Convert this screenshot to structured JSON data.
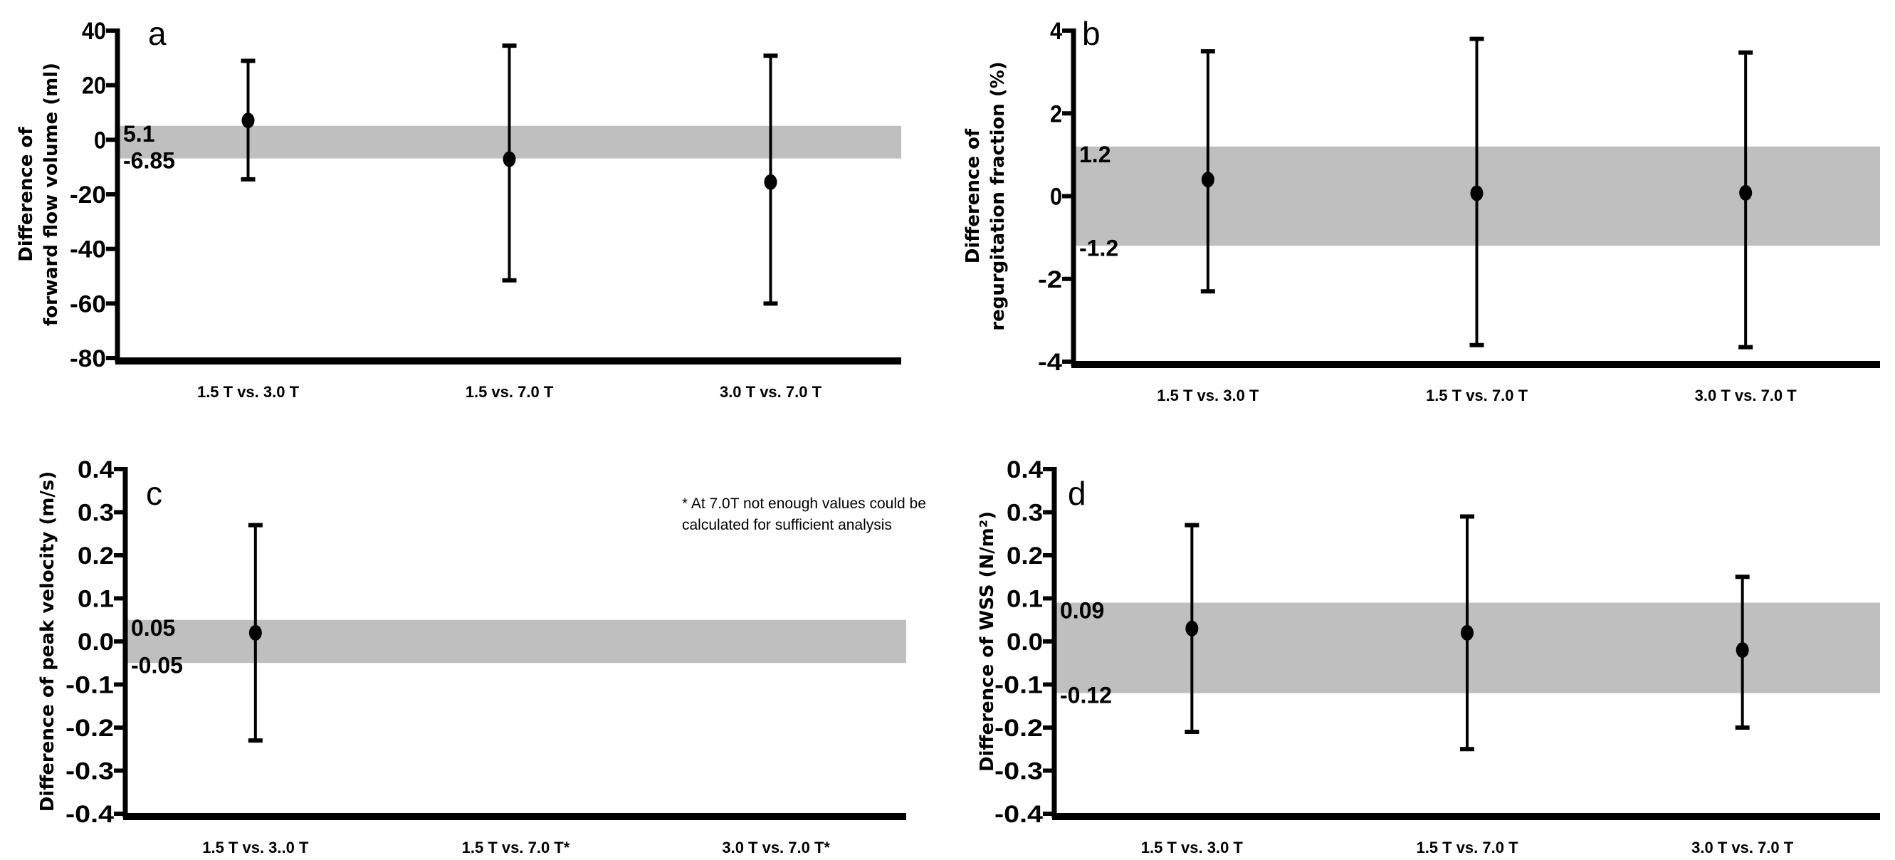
{
  "chart_data": [
    {
      "type": "scatter",
      "panel": "a",
      "ylabel_lines": [
        "Difference of",
        "forward flow volume (ml)"
      ],
      "categories": [
        "1.5 T vs. 3.0 T",
        "1.5 vs. 7.0 T",
        "3.0 T vs. 7.0 T"
      ],
      "yticks": [
        "40",
        "20",
        "0",
        "-20",
        "-40",
        "-60",
        "-80"
      ],
      "ylim": [
        -80,
        40
      ],
      "band": {
        "upper": 5.1,
        "lower": -6.85,
        "upper_label": "5.1",
        "lower_label": "-6.85",
        "color": "#bfbfbf"
      },
      "points": [
        {
          "mean": 7.1,
          "upper": 28.9,
          "lower": -14.5
        },
        {
          "mean": -7.1,
          "upper": 34.5,
          "lower": -51.5
        },
        {
          "mean": -15.5,
          "upper": 30.8,
          "lower": -60.0
        }
      ],
      "note": []
    },
    {
      "type": "scatter",
      "panel": "b",
      "ylabel_lines": [
        "Difference of",
        "regurgitation fraction (%)"
      ],
      "categories": [
        "1.5 T vs. 3.0 T",
        "1.5 T vs. 7.0 T",
        "3.0 T vs. 7.0 T"
      ],
      "yticks": [
        "4",
        "2",
        "0",
        "-2",
        "-4"
      ],
      "ylim": [
        -4,
        4
      ],
      "band": {
        "upper": 1.2,
        "lower": -1.2,
        "upper_label": "1.2",
        "lower_label": "-1.2",
        "color": "#bfbfbf"
      },
      "points": [
        {
          "mean": 0.4,
          "upper": 3.5,
          "lower": -2.3
        },
        {
          "mean": 0.07,
          "upper": 3.8,
          "lower": -3.6
        },
        {
          "mean": 0.08,
          "upper": 3.47,
          "lower": -3.65
        }
      ],
      "note": []
    },
    {
      "type": "scatter",
      "panel": "c",
      "ylabel_lines": [
        "Difference of peak velocity (m/s)"
      ],
      "categories": [
        "1.5 T vs. 3..0 T",
        "1.5 T vs. 7.0 T*",
        "3.0 T vs. 7.0 T*"
      ],
      "yticks": [
        "0.4",
        "0.3",
        "0.2",
        "0.1",
        "0.0",
        "-0.1",
        "-0.2",
        "-0.3",
        "-0.4"
      ],
      "ylim": [
        -0.4,
        0.4
      ],
      "band": {
        "upper": 0.05,
        "lower": -0.05,
        "upper_label": "0.05",
        "lower_label": "-0.05",
        "color": "#bfbfbf"
      },
      "points": [
        {
          "mean": 0.02,
          "upper": 0.27,
          "lower": -0.23
        },
        null,
        null
      ],
      "note": [
        "* At 7.0T not enough values could be",
        "calculated for sufficient analysis"
      ]
    },
    {
      "type": "scatter",
      "panel": "d",
      "ylabel_lines": [
        "Difference of WSS (N/m²)"
      ],
      "categories": [
        "1.5 T vs. 3.0 T",
        "1.5 T vs. 7.0 T",
        "3.0 T vs. 7.0 T"
      ],
      "yticks": [
        "0.4",
        "0.3",
        "0.2",
        "0.1",
        "0.0",
        "-0.1",
        "-0.2",
        "-0.3",
        "-0.4"
      ],
      "ylim": [
        -0.4,
        0.4
      ],
      "band": {
        "upper": 0.09,
        "lower": -0.12,
        "upper_label": "0.09",
        "lower_label": "-0.12",
        "color": "#bfbfbf"
      },
      "points": [
        {
          "mean": 0.03,
          "upper": 0.27,
          "lower": -0.21
        },
        {
          "mean": 0.02,
          "upper": 0.29,
          "lower": -0.25
        },
        {
          "mean": -0.02,
          "upper": 0.15,
          "lower": -0.2
        }
      ],
      "note": []
    }
  ]
}
